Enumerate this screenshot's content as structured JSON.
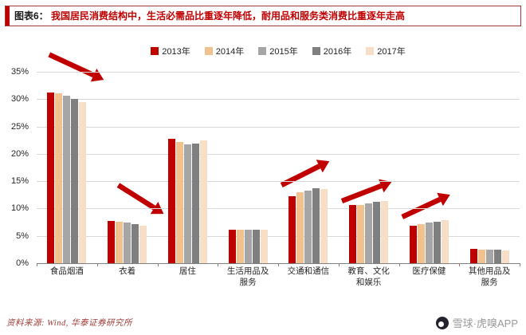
{
  "header": {
    "prefix": "图表6：",
    "title": "我国居民消费结构中，生活必需品比重逐年降低，耐用品和服务类消费比重逐年走高"
  },
  "chart_data": {
    "type": "bar",
    "categories": [
      "食品烟酒",
      "衣着",
      "居住",
      "生活用品及\n服务",
      "交通和通信",
      "教育、文化\n和娱乐",
      "医疗保健",
      "其他用品及\n服务"
    ],
    "series": [
      {
        "name": "2013年",
        "color": "#bf0000",
        "values": [
          31.2,
          7.8,
          22.7,
          6.1,
          12.3,
          10.6,
          6.9,
          2.7
        ]
      },
      {
        "name": "2014年",
        "color": "#f2c28e",
        "values": [
          31.0,
          7.6,
          22.2,
          6.1,
          13.0,
          10.6,
          7.2,
          2.5
        ]
      },
      {
        "name": "2015年",
        "color": "#a6a6a6",
        "values": [
          30.6,
          7.4,
          21.8,
          6.1,
          13.3,
          11.0,
          7.4,
          2.5
        ]
      },
      {
        "name": "2016年",
        "color": "#7f7f7f",
        "values": [
          30.1,
          7.2,
          21.9,
          6.1,
          13.7,
          11.2,
          7.6,
          2.5
        ]
      },
      {
        "name": "2017年",
        "color": "#f6dfc6",
        "values": [
          29.4,
          6.9,
          22.4,
          6.2,
          13.6,
          11.4,
          7.9,
          2.4
        ]
      }
    ],
    "ylim": [
      0,
      35
    ],
    "ytick_step": 5,
    "ytick_suffix": "%",
    "grid": true,
    "legend_position": "top",
    "annotation_color": "#c00000",
    "annotations": [
      {
        "type": "arrow",
        "from": [
          2.6,
          -9.0
        ],
        "to": [
          13.9,
          4.2
        ]
      },
      {
        "type": "arrow",
        "from": [
          16.9,
          59.2
        ],
        "to": [
          26.3,
          74.2
        ]
      },
      {
        "type": "arrow",
        "from": [
          50.7,
          59.2
        ],
        "to": [
          60.6,
          46.7
        ]
      },
      {
        "type": "arrow",
        "from": [
          63.2,
          67.5
        ],
        "to": [
          73.5,
          57.5
        ]
      },
      {
        "type": "arrow",
        "from": [
          75.7,
          75.8
        ],
        "to": [
          85.6,
          64.2
        ]
      }
    ]
  },
  "footer": {
    "source": "资料来源: Wind, 华泰证券研究所",
    "watermark": "雪球·虎嗅APP"
  }
}
